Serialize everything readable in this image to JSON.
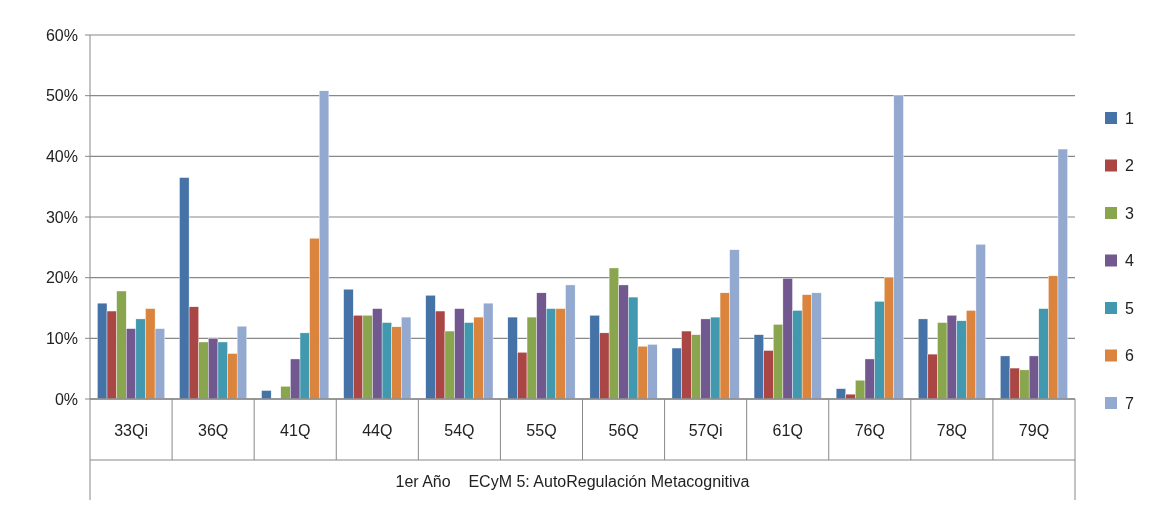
{
  "chart_data": {
    "type": "bar",
    "xlabel": "1er Año    ECyM 5: AutoRegulación Metacognitiva",
    "categories": [
      "33Qi",
      "36Q",
      "41Q",
      "44Q",
      "54Q",
      "55Q",
      "56Q",
      "57Qi",
      "61Q",
      "76Q",
      "78Q",
      "79Q"
    ],
    "series": [
      {
        "name": "1",
        "color": "#4572a7",
        "values": [
          15.8,
          36.5,
          1.4,
          18.1,
          17.1,
          13.5,
          13.8,
          8.4,
          10.6,
          1.7,
          13.2,
          7.1
        ]
      },
      {
        "name": "2",
        "color": "#aa4643",
        "values": [
          14.5,
          15.2,
          0,
          13.8,
          14.5,
          7.7,
          10.9,
          11.2,
          8,
          0.8,
          7.4,
          5.1
        ]
      },
      {
        "name": "3",
        "color": "#89a54e",
        "values": [
          17.8,
          9.4,
          2.1,
          13.8,
          11.2,
          13.5,
          21.6,
          10.6,
          12.3,
          3.1,
          12.6,
          4.8
        ]
      },
      {
        "name": "4",
        "color": "#71588f",
        "values": [
          11.6,
          10,
          6.6,
          14.9,
          14.9,
          17.5,
          18.8,
          13.2,
          19.9,
          6.6,
          13.8,
          7.1
        ]
      },
      {
        "name": "5",
        "color": "#4198af",
        "values": [
          13.2,
          9.4,
          10.9,
          12.6,
          12.6,
          14.9,
          16.8,
          13.5,
          14.6,
          16.1,
          12.9,
          14.9
        ]
      },
      {
        "name": "6",
        "color": "#db843d",
        "values": [
          14.9,
          7.5,
          26.5,
          11.9,
          13.5,
          14.9,
          8.7,
          17.5,
          17.2,
          20,
          14.6,
          20.3
        ]
      },
      {
        "name": "7",
        "color": "#93a9cf",
        "values": [
          11.6,
          12,
          50.8,
          13.5,
          15.8,
          18.8,
          9,
          24.6,
          17.5,
          50,
          25.5,
          41.2
        ]
      }
    ],
    "ylim": [
      0,
      60
    ],
    "yticks": [
      {
        "value": 0,
        "label": "0%"
      },
      {
        "value": 10,
        "label": "10%"
      },
      {
        "value": 20,
        "label": "20%"
      },
      {
        "value": 30,
        "label": "30%"
      },
      {
        "value": 40,
        "label": "40%"
      },
      {
        "value": 50,
        "label": "50%"
      },
      {
        "value": 60,
        "label": "60%"
      }
    ],
    "grid": "y",
    "legend": "right"
  }
}
